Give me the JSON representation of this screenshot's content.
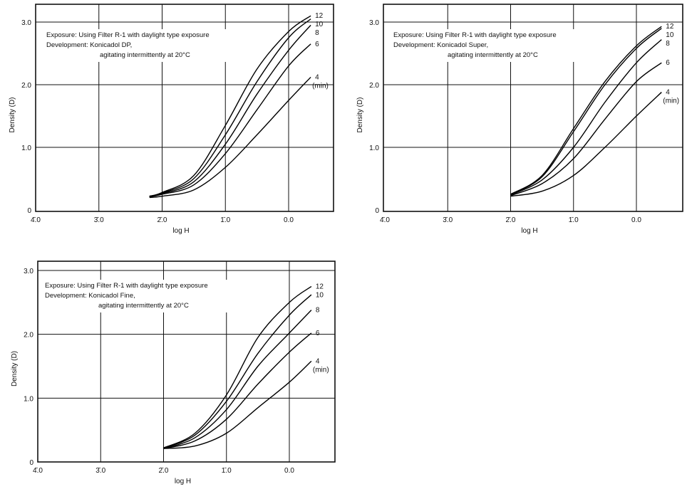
{
  "chart_data": [
    {
      "type": "line",
      "xlabel": "log H",
      "ylabel": "Density (D)",
      "x_tick_labels": [
        "4̄.0",
        "3̄.0",
        "2̄.0",
        "1̄.0",
        "0.0"
      ],
      "x_ticks": [
        -4,
        -3,
        -2,
        -1,
        0
      ],
      "y_tick_labels": [
        "0",
        "1.0",
        "2.0",
        "3.0"
      ],
      "y_ticks": [
        0,
        1,
        2,
        3
      ],
      "xlim": [
        -4,
        0.7
      ],
      "ylim": [
        0,
        3.3
      ],
      "grid": true,
      "annotation": [
        "Exposure: Using Filter R-1 with daylight type exposure",
        "Development: Konicadol DP,",
        "agitating intermittently at 20°C"
      ],
      "unit_label": "(min)",
      "x": [
        -2.2,
        -2.0,
        -1.5,
        -1.0,
        -0.5,
        0.0,
        0.35
      ],
      "series": [
        {
          "name": "12",
          "values": [
            0.22,
            0.28,
            0.55,
            1.35,
            2.25,
            2.85,
            3.1
          ]
        },
        {
          "name": "10",
          "values": [
            0.22,
            0.27,
            0.5,
            1.2,
            2.05,
            2.75,
            3.05
          ]
        },
        {
          "name": "8",
          "values": [
            0.21,
            0.26,
            0.45,
            1.05,
            1.85,
            2.55,
            2.95
          ]
        },
        {
          "name": "6",
          "values": [
            0.21,
            0.25,
            0.4,
            0.9,
            1.6,
            2.3,
            2.65
          ]
        },
        {
          "name": "4",
          "values": [
            0.2,
            0.22,
            0.32,
            0.68,
            1.2,
            1.75,
            2.12
          ]
        }
      ]
    },
    {
      "type": "line",
      "xlabel": "log H",
      "ylabel": "Density (D)",
      "x_tick_labels": [
        "4̄.0",
        "3̄.0",
        "2̄.0",
        "1̄.0",
        "0.0"
      ],
      "x_ticks": [
        -4,
        -3,
        -2,
        -1,
        0
      ],
      "y_tick_labels": [
        "0",
        "1.0",
        "2.0",
        "3.0"
      ],
      "y_ticks": [
        0,
        1,
        2,
        3
      ],
      "xlim": [
        -4,
        0.75
      ],
      "ylim": [
        0,
        3.3
      ],
      "grid": true,
      "annotation": [
        "Exposure: Using Filter R-1 with daylight type exposure",
        "Development: Konicadol Super,",
        "agitating intermittently at 20°C"
      ],
      "unit_label": "(min)",
      "x": [
        -2.0,
        -1.5,
        -1.0,
        -0.5,
        0.0,
        0.4
      ],
      "series": [
        {
          "name": "12",
          "values": [
            0.25,
            0.55,
            1.3,
            2.05,
            2.62,
            2.93
          ]
        },
        {
          "name": "10",
          "values": [
            0.25,
            0.53,
            1.25,
            2.0,
            2.58,
            2.9
          ]
        },
        {
          "name": "8",
          "values": [
            0.24,
            0.48,
            1.0,
            1.72,
            2.35,
            2.72
          ]
        },
        {
          "name": "6",
          "values": [
            0.23,
            0.42,
            0.82,
            1.45,
            2.05,
            2.35
          ]
        },
        {
          "name": "4",
          "values": [
            0.22,
            0.3,
            0.55,
            1.0,
            1.5,
            1.88
          ]
        }
      ]
    },
    {
      "type": "line",
      "xlabel": "log H",
      "ylabel": "Density (D)",
      "x_tick_labels": [
        "4̄.0",
        "3̄.0",
        "2̄.0",
        "1̄.0",
        "0.0"
      ],
      "x_ticks": [
        -4,
        -3,
        -2,
        -1,
        0
      ],
      "y_tick_labels": [
        "0",
        "1.0",
        "2.0",
        "3.0"
      ],
      "y_ticks": [
        0,
        1,
        2,
        3
      ],
      "xlim": [
        -4,
        0.72
      ],
      "ylim": [
        0,
        3.1
      ],
      "grid": true,
      "annotation": [
        "Exposure: Using Filter R-1 with daylight type exposure",
        "Development: Konicadol Fine,",
        "agitating intermittently at 20°C"
      ],
      "unit_label": "(min)",
      "x": [
        -2.0,
        -1.5,
        -1.0,
        -0.5,
        0.0,
        0.35
      ],
      "series": [
        {
          "name": "12",
          "values": [
            0.22,
            0.45,
            1.05,
            1.95,
            2.5,
            2.75
          ]
        },
        {
          "name": "10",
          "values": [
            0.22,
            0.42,
            0.95,
            1.7,
            2.3,
            2.62
          ]
        },
        {
          "name": "8",
          "values": [
            0.21,
            0.38,
            0.82,
            1.5,
            2.02,
            2.38
          ]
        },
        {
          "name": "6",
          "values": [
            0.21,
            0.33,
            0.67,
            1.22,
            1.72,
            2.02
          ]
        },
        {
          "name": "4",
          "values": [
            0.21,
            0.25,
            0.45,
            0.85,
            1.25,
            1.58
          ]
        }
      ]
    }
  ]
}
